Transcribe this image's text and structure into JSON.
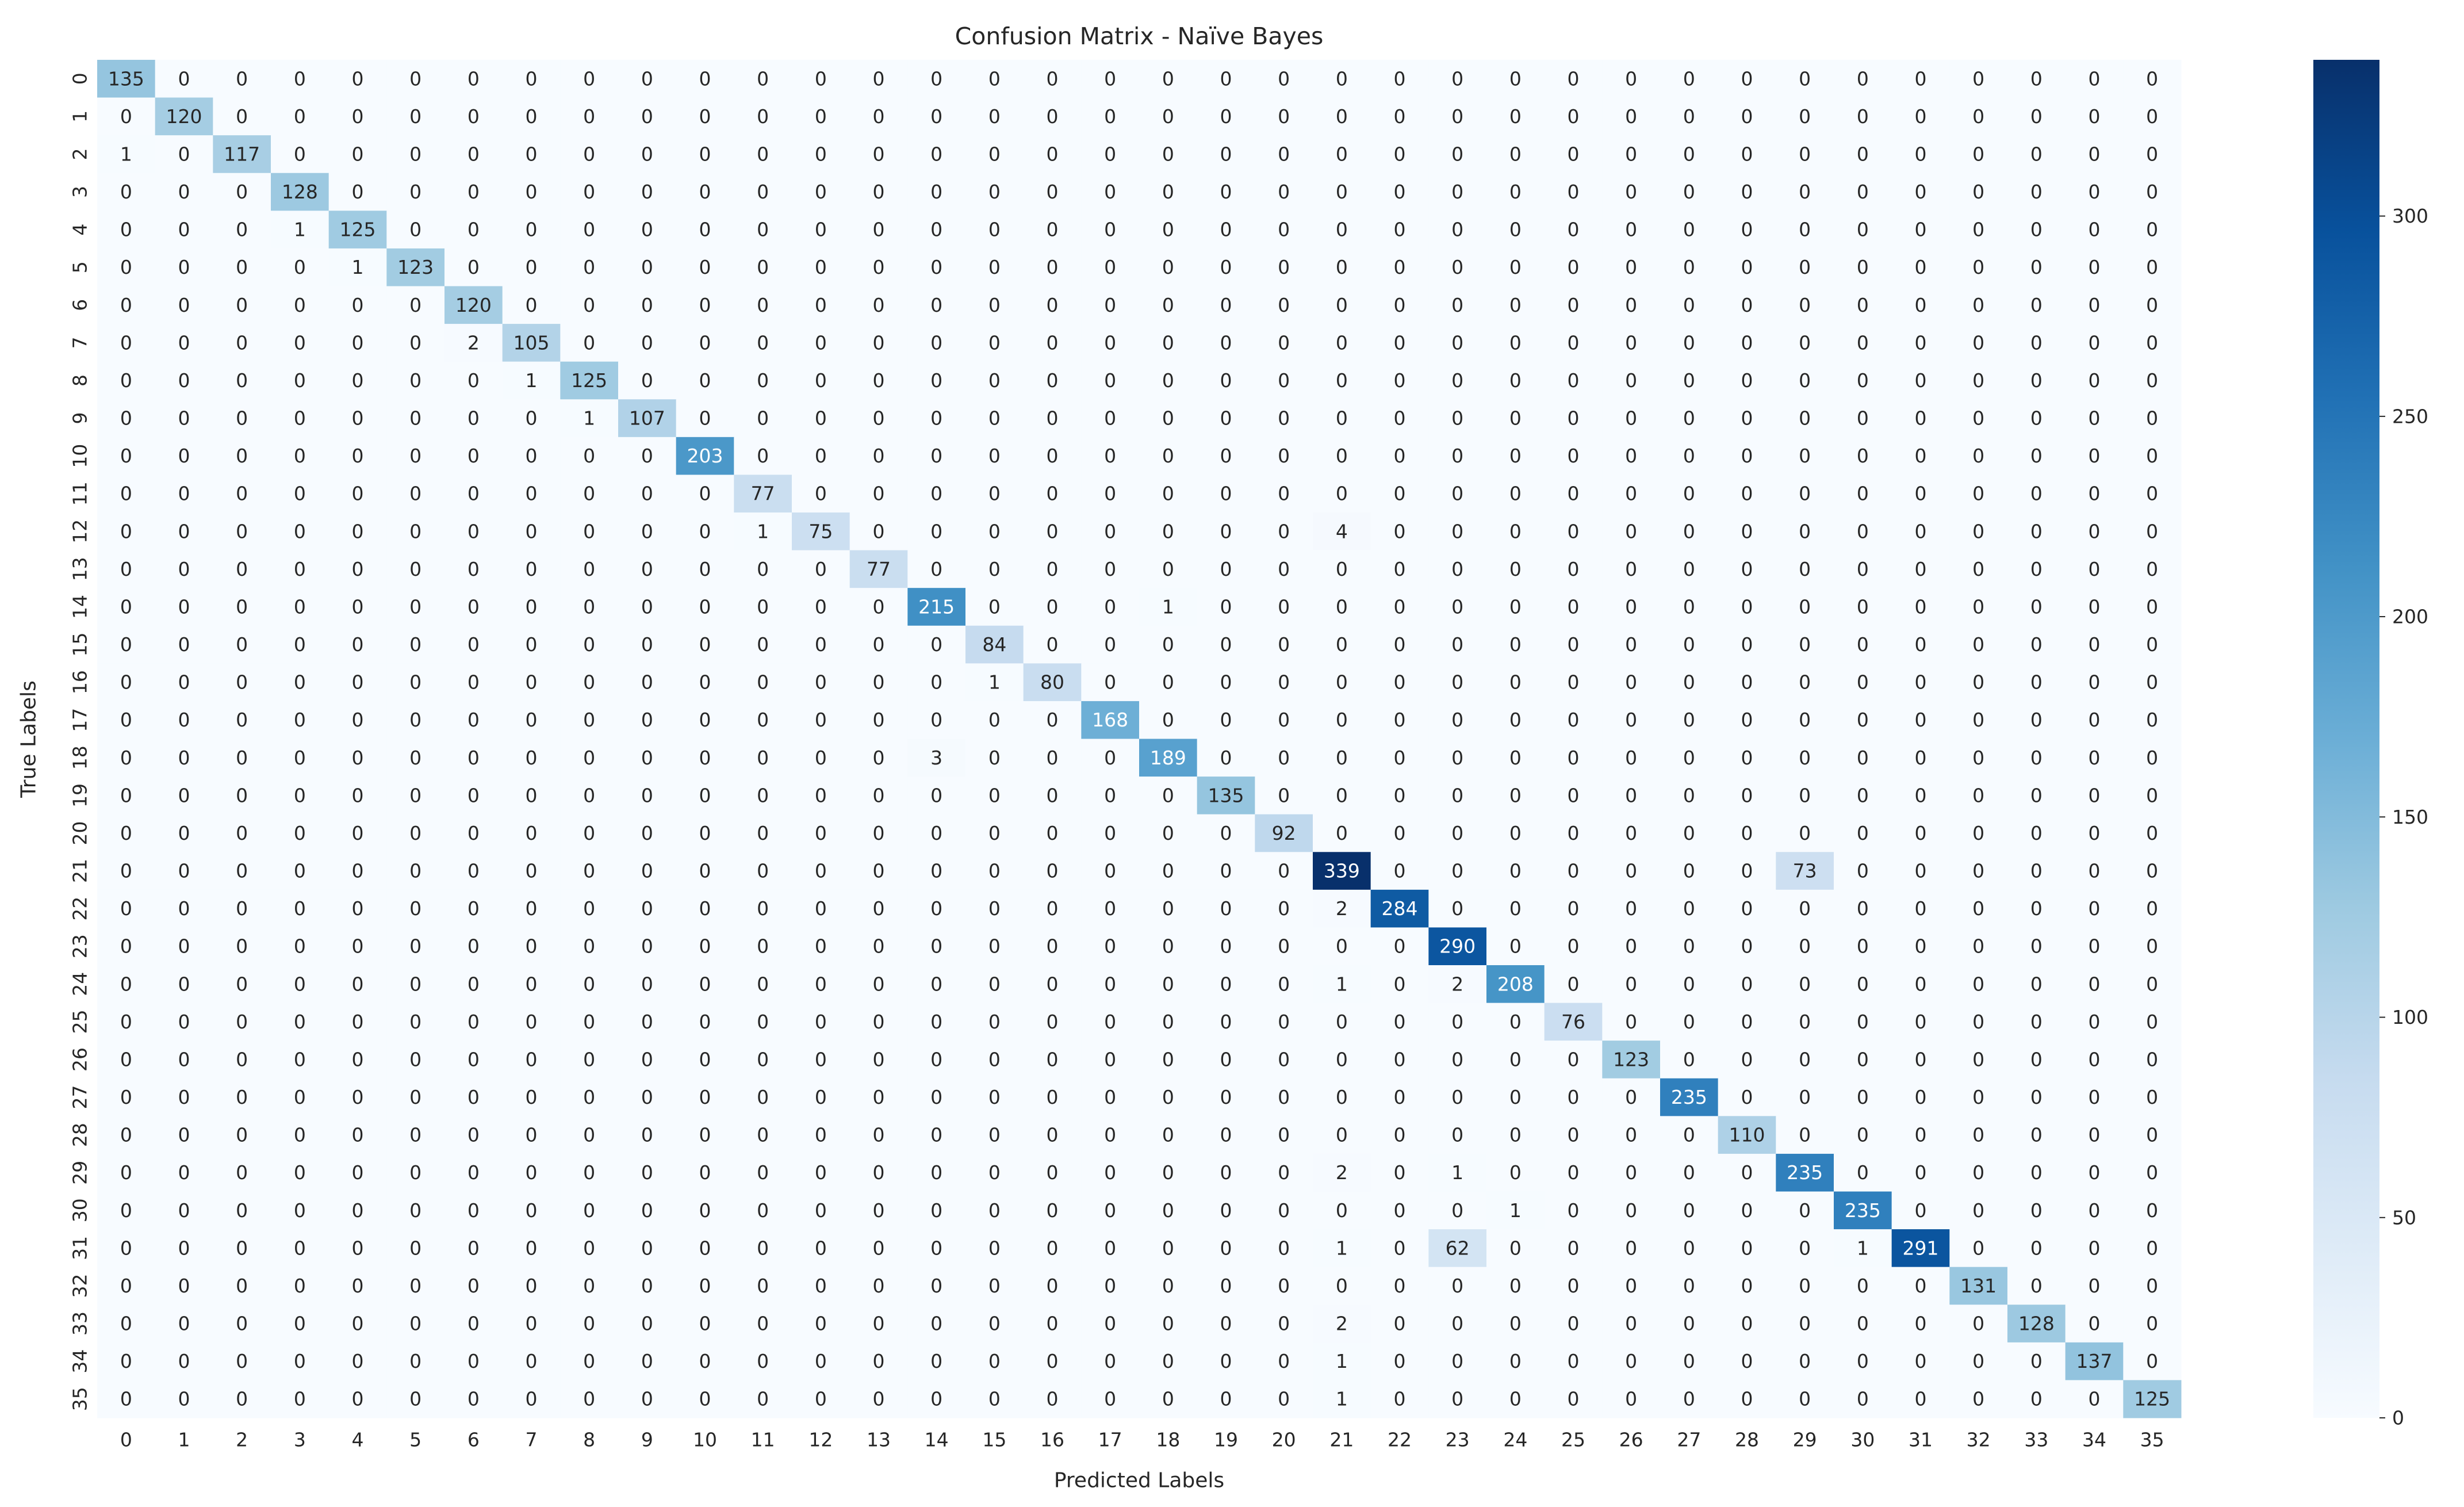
{
  "chart_data": {
    "type": "heatmap",
    "title": "Confusion Matrix - Naïve Bayes",
    "xlabel": "Predicted Labels",
    "ylabel": "True Labels",
    "x_categories": [
      "0",
      "1",
      "2",
      "3",
      "4",
      "5",
      "6",
      "7",
      "8",
      "9",
      "10",
      "11",
      "12",
      "13",
      "14",
      "15",
      "16",
      "17",
      "18",
      "19",
      "20",
      "21",
      "22",
      "23",
      "24",
      "25",
      "26",
      "27",
      "28",
      "29",
      "30",
      "31",
      "32",
      "33",
      "34",
      "35"
    ],
    "y_categories": [
      "0",
      "1",
      "2",
      "3",
      "4",
      "5",
      "6",
      "7",
      "8",
      "9",
      "10",
      "11",
      "12",
      "13",
      "14",
      "15",
      "16",
      "17",
      "18",
      "19",
      "20",
      "21",
      "22",
      "23",
      "24",
      "25",
      "26",
      "27",
      "28",
      "29",
      "30",
      "31",
      "32",
      "33",
      "34",
      "35"
    ],
    "colormap": [
      "#f7fbff",
      "#deebf7",
      "#c6dbef",
      "#9ecae1",
      "#6baed6",
      "#4292c6",
      "#2171b5",
      "#08519c",
      "#08306b"
    ],
    "clim": [
      0,
      339
    ],
    "cticks": [
      0,
      50,
      100,
      150,
      200,
      250,
      300
    ],
    "matrix": [
      [
        135,
        0,
        0,
        0,
        0,
        0,
        0,
        0,
        0,
        0,
        0,
        0,
        0,
        0,
        0,
        0,
        0,
        0,
        0,
        0,
        0,
        0,
        0,
        0,
        0,
        0,
        0,
        0,
        0,
        0,
        0,
        0,
        0,
        0,
        0,
        0
      ],
      [
        0,
        120,
        0,
        0,
        0,
        0,
        0,
        0,
        0,
        0,
        0,
        0,
        0,
        0,
        0,
        0,
        0,
        0,
        0,
        0,
        0,
        0,
        0,
        0,
        0,
        0,
        0,
        0,
        0,
        0,
        0,
        0,
        0,
        0,
        0,
        0
      ],
      [
        1,
        0,
        117,
        0,
        0,
        0,
        0,
        0,
        0,
        0,
        0,
        0,
        0,
        0,
        0,
        0,
        0,
        0,
        0,
        0,
        0,
        0,
        0,
        0,
        0,
        0,
        0,
        0,
        0,
        0,
        0,
        0,
        0,
        0,
        0,
        0
      ],
      [
        0,
        0,
        0,
        128,
        0,
        0,
        0,
        0,
        0,
        0,
        0,
        0,
        0,
        0,
        0,
        0,
        0,
        0,
        0,
        0,
        0,
        0,
        0,
        0,
        0,
        0,
        0,
        0,
        0,
        0,
        0,
        0,
        0,
        0,
        0,
        0
      ],
      [
        0,
        0,
        0,
        1,
        125,
        0,
        0,
        0,
        0,
        0,
        0,
        0,
        0,
        0,
        0,
        0,
        0,
        0,
        0,
        0,
        0,
        0,
        0,
        0,
        0,
        0,
        0,
        0,
        0,
        0,
        0,
        0,
        0,
        0,
        0,
        0
      ],
      [
        0,
        0,
        0,
        0,
        1,
        123,
        0,
        0,
        0,
        0,
        0,
        0,
        0,
        0,
        0,
        0,
        0,
        0,
        0,
        0,
        0,
        0,
        0,
        0,
        0,
        0,
        0,
        0,
        0,
        0,
        0,
        0,
        0,
        0,
        0,
        0
      ],
      [
        0,
        0,
        0,
        0,
        0,
        0,
        120,
        0,
        0,
        0,
        0,
        0,
        0,
        0,
        0,
        0,
        0,
        0,
        0,
        0,
        0,
        0,
        0,
        0,
        0,
        0,
        0,
        0,
        0,
        0,
        0,
        0,
        0,
        0,
        0,
        0
      ],
      [
        0,
        0,
        0,
        0,
        0,
        0,
        2,
        105,
        0,
        0,
        0,
        0,
        0,
        0,
        0,
        0,
        0,
        0,
        0,
        0,
        0,
        0,
        0,
        0,
        0,
        0,
        0,
        0,
        0,
        0,
        0,
        0,
        0,
        0,
        0,
        0
      ],
      [
        0,
        0,
        0,
        0,
        0,
        0,
        0,
        1,
        125,
        0,
        0,
        0,
        0,
        0,
        0,
        0,
        0,
        0,
        0,
        0,
        0,
        0,
        0,
        0,
        0,
        0,
        0,
        0,
        0,
        0,
        0,
        0,
        0,
        0,
        0,
        0
      ],
      [
        0,
        0,
        0,
        0,
        0,
        0,
        0,
        0,
        1,
        107,
        0,
        0,
        0,
        0,
        0,
        0,
        0,
        0,
        0,
        0,
        0,
        0,
        0,
        0,
        0,
        0,
        0,
        0,
        0,
        0,
        0,
        0,
        0,
        0,
        0,
        0
      ],
      [
        0,
        0,
        0,
        0,
        0,
        0,
        0,
        0,
        0,
        0,
        203,
        0,
        0,
        0,
        0,
        0,
        0,
        0,
        0,
        0,
        0,
        0,
        0,
        0,
        0,
        0,
        0,
        0,
        0,
        0,
        0,
        0,
        0,
        0,
        0,
        0
      ],
      [
        0,
        0,
        0,
        0,
        0,
        0,
        0,
        0,
        0,
        0,
        0,
        77,
        0,
        0,
        0,
        0,
        0,
        0,
        0,
        0,
        0,
        0,
        0,
        0,
        0,
        0,
        0,
        0,
        0,
        0,
        0,
        0,
        0,
        0,
        0,
        0
      ],
      [
        0,
        0,
        0,
        0,
        0,
        0,
        0,
        0,
        0,
        0,
        0,
        1,
        75,
        0,
        0,
        0,
        0,
        0,
        0,
        0,
        0,
        4,
        0,
        0,
        0,
        0,
        0,
        0,
        0,
        0,
        0,
        0,
        0,
        0,
        0,
        0
      ],
      [
        0,
        0,
        0,
        0,
        0,
        0,
        0,
        0,
        0,
        0,
        0,
        0,
        0,
        77,
        0,
        0,
        0,
        0,
        0,
        0,
        0,
        0,
        0,
        0,
        0,
        0,
        0,
        0,
        0,
        0,
        0,
        0,
        0,
        0,
        0,
        0
      ],
      [
        0,
        0,
        0,
        0,
        0,
        0,
        0,
        0,
        0,
        0,
        0,
        0,
        0,
        0,
        215,
        0,
        0,
        0,
        1,
        0,
        0,
        0,
        0,
        0,
        0,
        0,
        0,
        0,
        0,
        0,
        0,
        0,
        0,
        0,
        0,
        0
      ],
      [
        0,
        0,
        0,
        0,
        0,
        0,
        0,
        0,
        0,
        0,
        0,
        0,
        0,
        0,
        0,
        84,
        0,
        0,
        0,
        0,
        0,
        0,
        0,
        0,
        0,
        0,
        0,
        0,
        0,
        0,
        0,
        0,
        0,
        0,
        0,
        0
      ],
      [
        0,
        0,
        0,
        0,
        0,
        0,
        0,
        0,
        0,
        0,
        0,
        0,
        0,
        0,
        0,
        1,
        80,
        0,
        0,
        0,
        0,
        0,
        0,
        0,
        0,
        0,
        0,
        0,
        0,
        0,
        0,
        0,
        0,
        0,
        0,
        0
      ],
      [
        0,
        0,
        0,
        0,
        0,
        0,
        0,
        0,
        0,
        0,
        0,
        0,
        0,
        0,
        0,
        0,
        0,
        168,
        0,
        0,
        0,
        0,
        0,
        0,
        0,
        0,
        0,
        0,
        0,
        0,
        0,
        0,
        0,
        0,
        0,
        0
      ],
      [
        0,
        0,
        0,
        0,
        0,
        0,
        0,
        0,
        0,
        0,
        0,
        0,
        0,
        0,
        3,
        0,
        0,
        0,
        189,
        0,
        0,
        0,
        0,
        0,
        0,
        0,
        0,
        0,
        0,
        0,
        0,
        0,
        0,
        0,
        0,
        0
      ],
      [
        0,
        0,
        0,
        0,
        0,
        0,
        0,
        0,
        0,
        0,
        0,
        0,
        0,
        0,
        0,
        0,
        0,
        0,
        0,
        135,
        0,
        0,
        0,
        0,
        0,
        0,
        0,
        0,
        0,
        0,
        0,
        0,
        0,
        0,
        0,
        0
      ],
      [
        0,
        0,
        0,
        0,
        0,
        0,
        0,
        0,
        0,
        0,
        0,
        0,
        0,
        0,
        0,
        0,
        0,
        0,
        0,
        0,
        92,
        0,
        0,
        0,
        0,
        0,
        0,
        0,
        0,
        0,
        0,
        0,
        0,
        0,
        0,
        0
      ],
      [
        0,
        0,
        0,
        0,
        0,
        0,
        0,
        0,
        0,
        0,
        0,
        0,
        0,
        0,
        0,
        0,
        0,
        0,
        0,
        0,
        0,
        339,
        0,
        0,
        0,
        0,
        0,
        0,
        0,
        73,
        0,
        0,
        0,
        0,
        0,
        0
      ],
      [
        0,
        0,
        0,
        0,
        0,
        0,
        0,
        0,
        0,
        0,
        0,
        0,
        0,
        0,
        0,
        0,
        0,
        0,
        0,
        0,
        0,
        2,
        284,
        0,
        0,
        0,
        0,
        0,
        0,
        0,
        0,
        0,
        0,
        0,
        0,
        0
      ],
      [
        0,
        0,
        0,
        0,
        0,
        0,
        0,
        0,
        0,
        0,
        0,
        0,
        0,
        0,
        0,
        0,
        0,
        0,
        0,
        0,
        0,
        0,
        0,
        290,
        0,
        0,
        0,
        0,
        0,
        0,
        0,
        0,
        0,
        0,
        0,
        0
      ],
      [
        0,
        0,
        0,
        0,
        0,
        0,
        0,
        0,
        0,
        0,
        0,
        0,
        0,
        0,
        0,
        0,
        0,
        0,
        0,
        0,
        0,
        1,
        0,
        2,
        208,
        0,
        0,
        0,
        0,
        0,
        0,
        0,
        0,
        0,
        0,
        0
      ],
      [
        0,
        0,
        0,
        0,
        0,
        0,
        0,
        0,
        0,
        0,
        0,
        0,
        0,
        0,
        0,
        0,
        0,
        0,
        0,
        0,
        0,
        0,
        0,
        0,
        0,
        76,
        0,
        0,
        0,
        0,
        0,
        0,
        0,
        0,
        0,
        0
      ],
      [
        0,
        0,
        0,
        0,
        0,
        0,
        0,
        0,
        0,
        0,
        0,
        0,
        0,
        0,
        0,
        0,
        0,
        0,
        0,
        0,
        0,
        0,
        0,
        0,
        0,
        0,
        123,
        0,
        0,
        0,
        0,
        0,
        0,
        0,
        0,
        0
      ],
      [
        0,
        0,
        0,
        0,
        0,
        0,
        0,
        0,
        0,
        0,
        0,
        0,
        0,
        0,
        0,
        0,
        0,
        0,
        0,
        0,
        0,
        0,
        0,
        0,
        0,
        0,
        0,
        235,
        0,
        0,
        0,
        0,
        0,
        0,
        0,
        0
      ],
      [
        0,
        0,
        0,
        0,
        0,
        0,
        0,
        0,
        0,
        0,
        0,
        0,
        0,
        0,
        0,
        0,
        0,
        0,
        0,
        0,
        0,
        0,
        0,
        0,
        0,
        0,
        0,
        0,
        110,
        0,
        0,
        0,
        0,
        0,
        0,
        0
      ],
      [
        0,
        0,
        0,
        0,
        0,
        0,
        0,
        0,
        0,
        0,
        0,
        0,
        0,
        0,
        0,
        0,
        0,
        0,
        0,
        0,
        0,
        2,
        0,
        1,
        0,
        0,
        0,
        0,
        0,
        235,
        0,
        0,
        0,
        0,
        0,
        0
      ],
      [
        0,
        0,
        0,
        0,
        0,
        0,
        0,
        0,
        0,
        0,
        0,
        0,
        0,
        0,
        0,
        0,
        0,
        0,
        0,
        0,
        0,
        0,
        0,
        0,
        1,
        0,
        0,
        0,
        0,
        0,
        235,
        0,
        0,
        0,
        0,
        0
      ],
      [
        0,
        0,
        0,
        0,
        0,
        0,
        0,
        0,
        0,
        0,
        0,
        0,
        0,
        0,
        0,
        0,
        0,
        0,
        0,
        0,
        0,
        1,
        0,
        62,
        0,
        0,
        0,
        0,
        0,
        0,
        1,
        291,
        0,
        0,
        0,
        0
      ],
      [
        0,
        0,
        0,
        0,
        0,
        0,
        0,
        0,
        0,
        0,
        0,
        0,
        0,
        0,
        0,
        0,
        0,
        0,
        0,
        0,
        0,
        0,
        0,
        0,
        0,
        0,
        0,
        0,
        0,
        0,
        0,
        0,
        131,
        0,
        0,
        0
      ],
      [
        0,
        0,
        0,
        0,
        0,
        0,
        0,
        0,
        0,
        0,
        0,
        0,
        0,
        0,
        0,
        0,
        0,
        0,
        0,
        0,
        0,
        2,
        0,
        0,
        0,
        0,
        0,
        0,
        0,
        0,
        0,
        0,
        0,
        128,
        0,
        0
      ],
      [
        0,
        0,
        0,
        0,
        0,
        0,
        0,
        0,
        0,
        0,
        0,
        0,
        0,
        0,
        0,
        0,
        0,
        0,
        0,
        0,
        0,
        1,
        0,
        0,
        0,
        0,
        0,
        0,
        0,
        0,
        0,
        0,
        0,
        0,
        137,
        0
      ],
      [
        0,
        0,
        0,
        0,
        0,
        0,
        0,
        0,
        0,
        0,
        0,
        0,
        0,
        0,
        0,
        0,
        0,
        0,
        0,
        0,
        0,
        1,
        0,
        0,
        0,
        0,
        0,
        0,
        0,
        0,
        0,
        0,
        0,
        0,
        0,
        125
      ]
    ]
  }
}
